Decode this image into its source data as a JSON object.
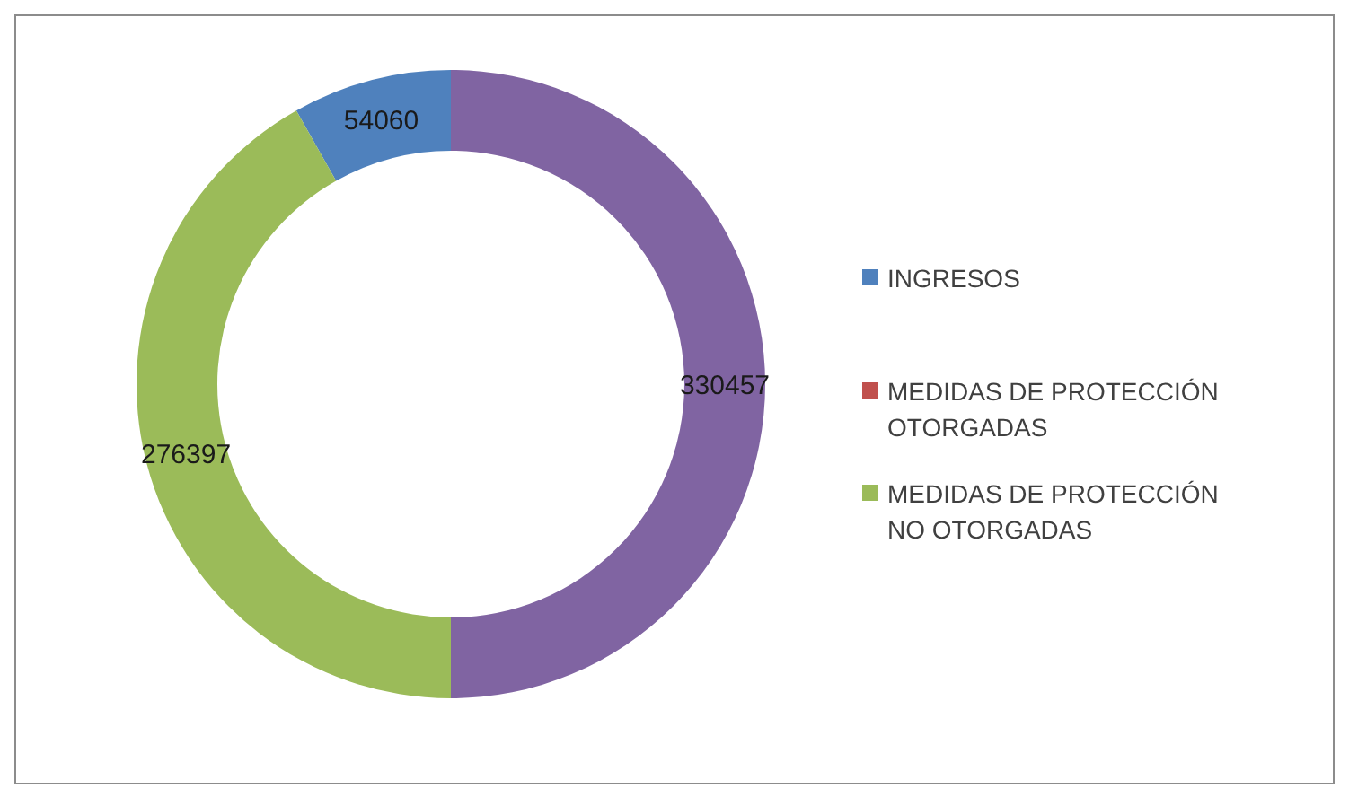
{
  "chart_data": {
    "type": "donut",
    "categories": [
      "INGRESOS",
      "MEDIDAS DE PROTECCIÓN OTORGADAS",
      "MEDIDAS DE PROTECCIÓN NO OTORGADAS",
      null
    ],
    "values": [
      54060,
      0,
      276397,
      330457
    ],
    "colors": [
      "#4f81bd",
      "#c0504d",
      "#9bbb59",
      "#8064a2"
    ],
    "value_labels": [
      "54060",
      null,
      "276397",
      "330457"
    ],
    "legend": "right"
  }
}
